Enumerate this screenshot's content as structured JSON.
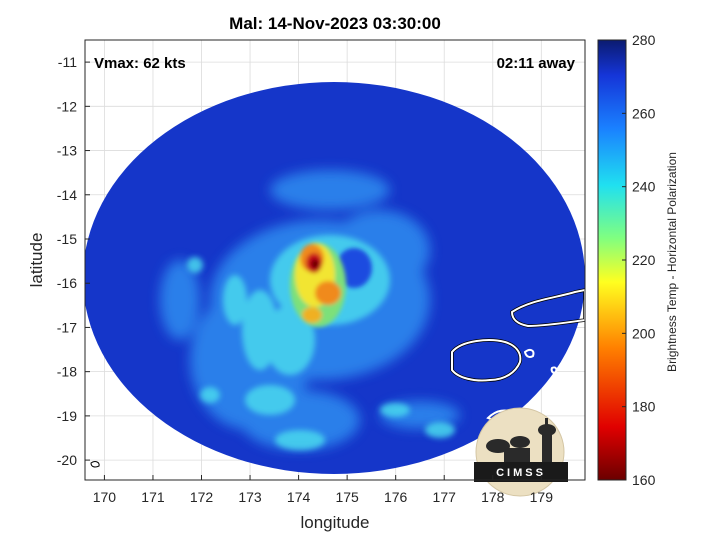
{
  "title": "Mal: 14-Nov-2023 03:30:00",
  "vmax_label": "Vmax: 62 kts",
  "away_label": "02:11 away",
  "xlabel": "longitude",
  "ylabel": "latitude",
  "colorbar_label": "Brightness Temp - Horizontal Polarization",
  "logo_text": "CIMSS",
  "x_ticks": [
    170,
    171,
    172,
    173,
    174,
    175,
    176,
    177,
    178,
    179
  ],
  "y_ticks": [
    -11,
    -12,
    -13,
    -14,
    -15,
    -16,
    -17,
    -18,
    -19,
    -20
  ],
  "colorbar_ticks": [
    280,
    260,
    240,
    220,
    200,
    180,
    160
  ],
  "map": {
    "lon_range": [
      169.6,
      179.9
    ],
    "lat_range": [
      -20.45,
      -10.5
    ],
    "colorbar_range": [
      160,
      280
    ],
    "colors": {
      "background_cold": "#1536c9",
      "band_mid": "#2d8cf0",
      "band_light": "#4ad8ee",
      "core_warm": "#f2e533",
      "core_orange": "#f08a1c",
      "core_red": "#c8101a",
      "core_darkest": "#6b0000",
      "land_outline": "#ffffff"
    }
  }
}
